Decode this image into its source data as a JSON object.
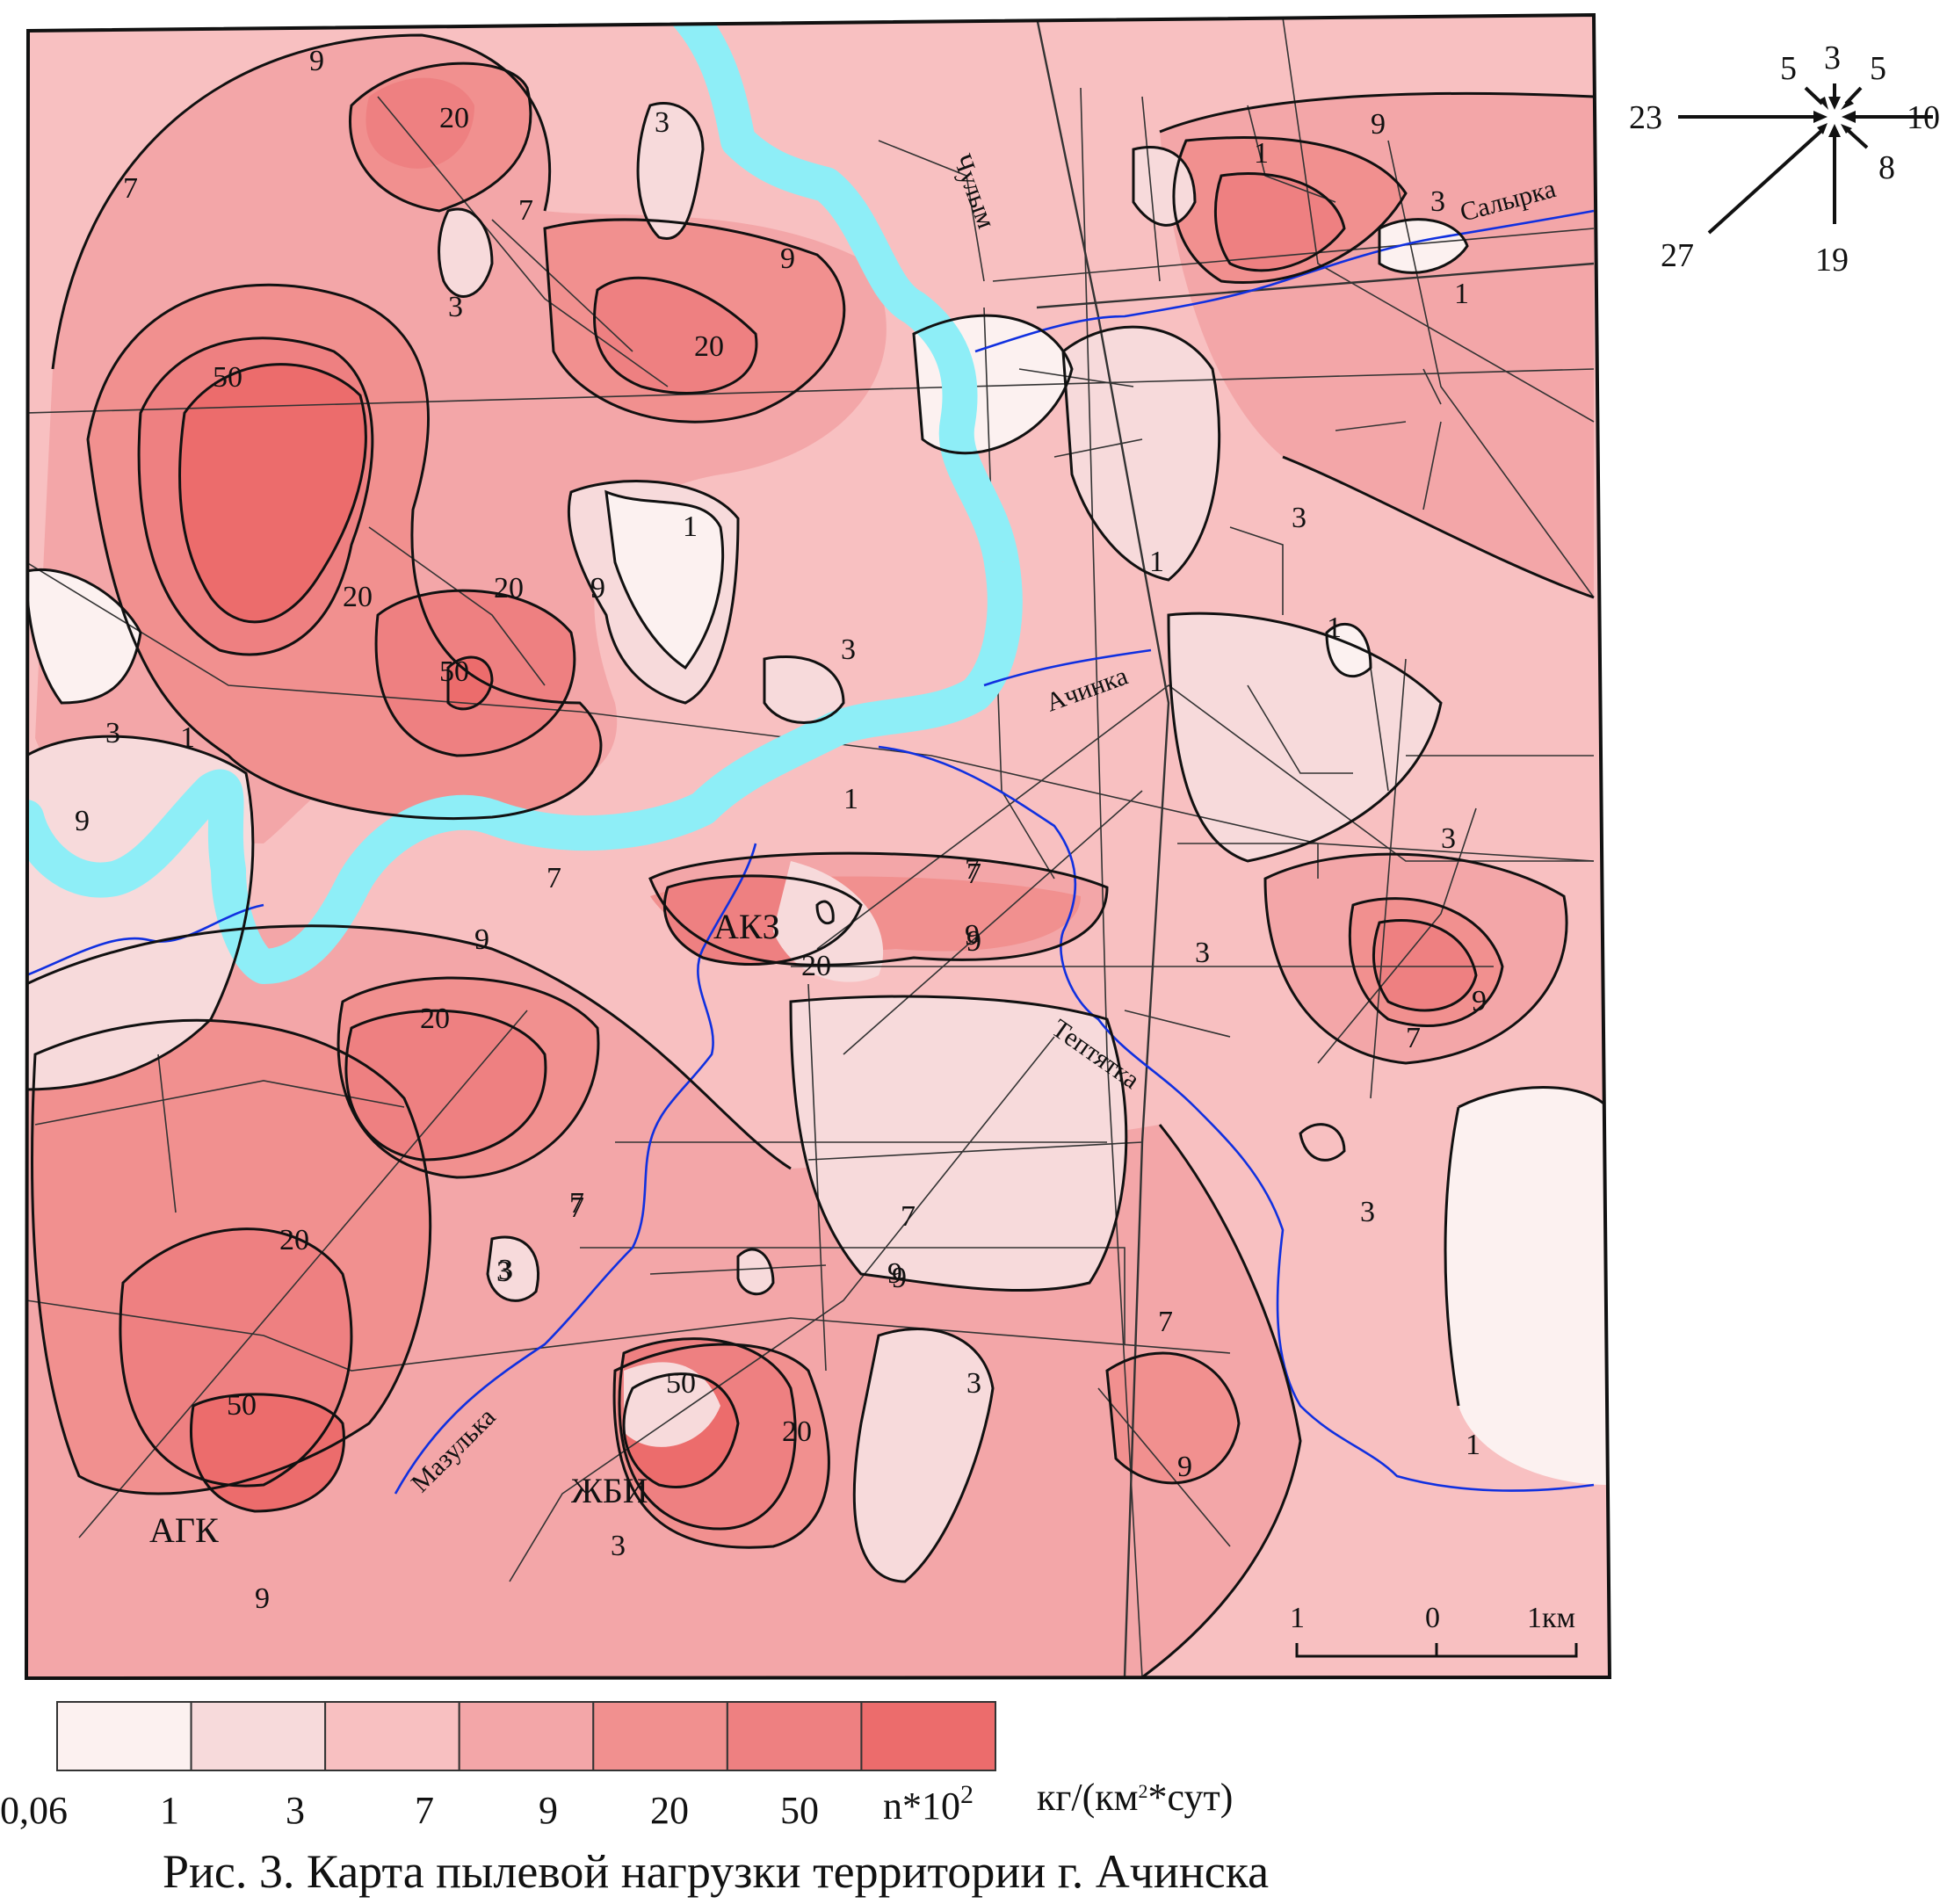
{
  "caption": "Рис. 3. Карта пылевой нагрузки территории г. Ачинска",
  "legend": {
    "classes": [
      {
        "label": "0,06",
        "color": "#fcf1f0"
      },
      {
        "label": "1",
        "color": "#f7dadb"
      },
      {
        "label": "3",
        "color": "#f8c0c1"
      },
      {
        "label": "7",
        "color": "#f3a6a8"
      },
      {
        "label": "9",
        "color": "#f1908f"
      },
      {
        "label": "20",
        "color": "#ee8081"
      },
      {
        "label": "50",
        "color": "#ec6c6c"
      }
    ],
    "unit_prefix": "n*10",
    "unit_exp": "2",
    "unit_main": "кг/(км",
    "unit_exp2": "2",
    "unit_suffix": "*сут)"
  },
  "scale_bar": {
    "labels": [
      "1",
      "0",
      "1км"
    ]
  },
  "wind_rose": {
    "values": {
      "n": "3",
      "nnw": "5",
      "nne": "5",
      "w": "23",
      "e": "10",
      "se": "8",
      "s": "19",
      "sw": "27"
    }
  },
  "rivers": {
    "main": "Чулым",
    "tributaries": [
      "Ачинка",
      "Салырка",
      "Тептятка",
      "Мазулька"
    ]
  },
  "places": [
    "АКЗ",
    "АГК",
    "ЖБИ"
  ],
  "contour_labels": [
    "9",
    "7",
    "20",
    "3",
    "7",
    "3",
    "9",
    "20",
    "50",
    "20",
    "20",
    "9",
    "50",
    "1",
    "3",
    "1",
    "3",
    "9",
    "1",
    "7",
    "20",
    "9",
    "7",
    "9",
    "20",
    "3",
    "7",
    "1",
    "3",
    "1",
    "3",
    "9",
    "1",
    "1",
    "3",
    "9",
    "7",
    "7",
    "9",
    "3",
    "20",
    "7",
    "3",
    "9",
    "50",
    "50",
    "20",
    "9",
    "3",
    "7",
    "9",
    "3",
    "1",
    "3",
    "7",
    "9"
  ]
}
